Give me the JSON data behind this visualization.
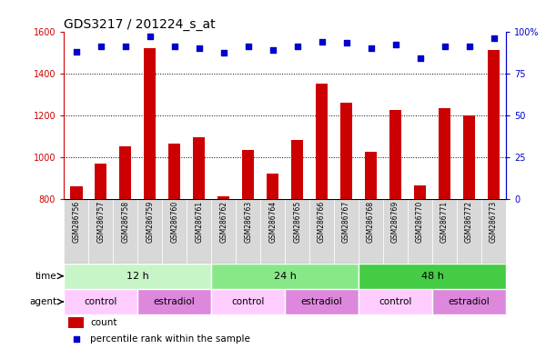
{
  "title": "GDS3217 / 201224_s_at",
  "samples": [
    "GSM286756",
    "GSM286757",
    "GSM286758",
    "GSM286759",
    "GSM286760",
    "GSM286761",
    "GSM286762",
    "GSM286763",
    "GSM286764",
    "GSM286765",
    "GSM286766",
    "GSM286767",
    "GSM286768",
    "GSM286769",
    "GSM286770",
    "GSM286771",
    "GSM286772",
    "GSM286773"
  ],
  "counts": [
    860,
    970,
    1050,
    1520,
    1065,
    1095,
    810,
    1035,
    920,
    1080,
    1350,
    1260,
    1025,
    1225,
    865,
    1235,
    1200,
    1510
  ],
  "percentile_ranks": [
    88,
    91,
    91,
    97,
    91,
    90,
    87,
    91,
    89,
    91,
    94,
    93,
    90,
    92,
    84,
    91,
    91,
    96
  ],
  "ylim_left": [
    800,
    1600
  ],
  "ylim_right": [
    0,
    100
  ],
  "yticks_left": [
    800,
    1000,
    1200,
    1400,
    1600
  ],
  "yticks_right": [
    0,
    25,
    50,
    75,
    100
  ],
  "bar_color": "#cc0000",
  "dot_color": "#0000cc",
  "time_groups": [
    {
      "label": "12 h",
      "start": 0,
      "end": 6,
      "color": "#c8f5c8"
    },
    {
      "label": "24 h",
      "start": 6,
      "end": 12,
      "color": "#88e888"
    },
    {
      "label": "48 h",
      "start": 12,
      "end": 18,
      "color": "#44cc44"
    }
  ],
  "agent_groups": [
    {
      "label": "control",
      "start": 0,
      "end": 3,
      "color": "#ffccff"
    },
    {
      "label": "estradiol",
      "start": 3,
      "end": 6,
      "color": "#dd88dd"
    },
    {
      "label": "control",
      "start": 6,
      "end": 9,
      "color": "#ffccff"
    },
    {
      "label": "estradiol",
      "start": 9,
      "end": 12,
      "color": "#dd88dd"
    },
    {
      "label": "control",
      "start": 12,
      "end": 15,
      "color": "#ffccff"
    },
    {
      "label": "estradiol",
      "start": 15,
      "end": 18,
      "color": "#dd88dd"
    }
  ],
  "legend_count_label": "count",
  "legend_pct_label": "percentile rank within the sample",
  "row_label_time": "time",
  "row_label_agent": "agent",
  "bar_color_left": "#cc0000",
  "right_axis_color": "#0000cc",
  "title_fontsize": 10,
  "tick_fontsize": 7,
  "bar_width": 0.5,
  "sample_label_fontsize": 5.5,
  "xticklabel_bg": "#d8d8d8"
}
